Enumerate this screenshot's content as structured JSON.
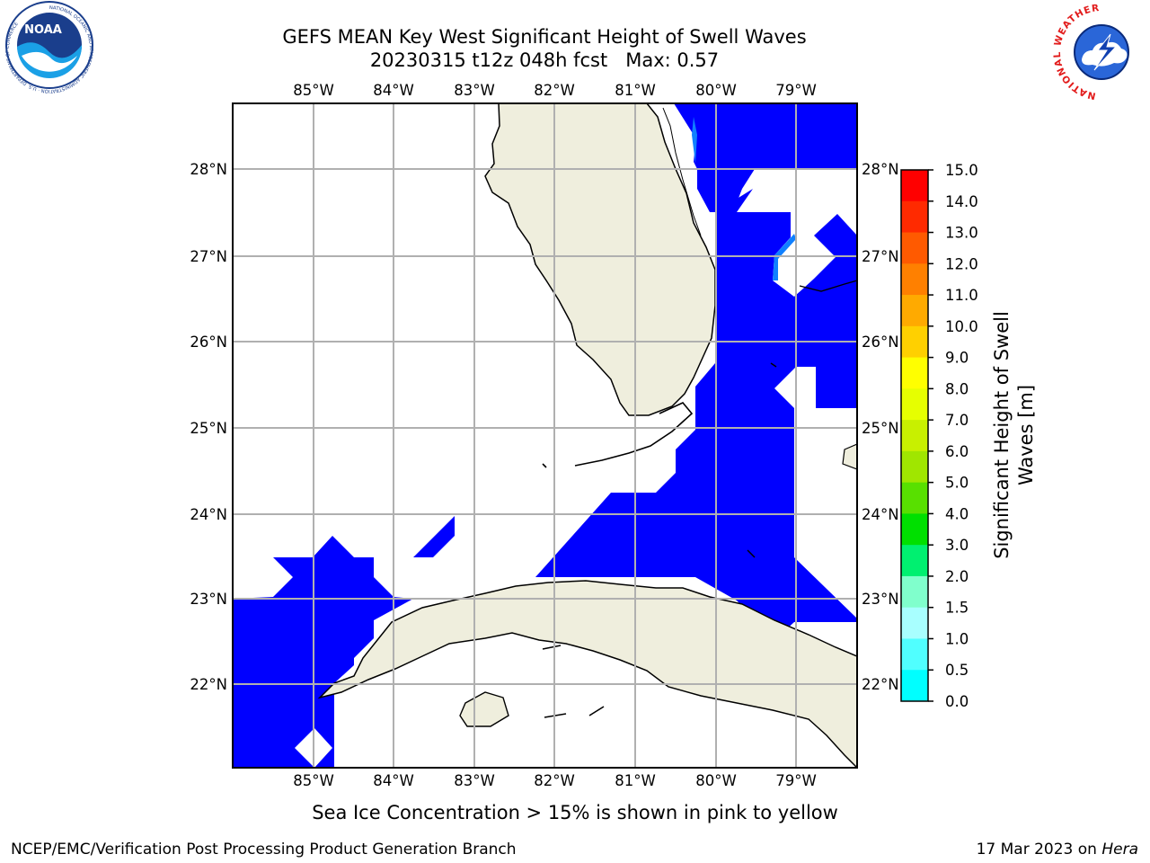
{
  "title": {
    "line1": "GEFS MEAN Key West Significant Height of Swell Waves",
    "line2": "20230315 t12z 048h fcst   Max: 0.57"
  },
  "axes": {
    "lon_labels": [
      "85°W",
      "84°W",
      "83°W",
      "82°W",
      "81°W",
      "80°W",
      "79°W"
    ],
    "lat_labels": [
      "28°N",
      "27°N",
      "26°N",
      "25°N",
      "24°N",
      "23°N",
      "22°N"
    ]
  },
  "colorbar": {
    "label_line1": "Significant Height of Swell",
    "label_line2": "Waves [m]",
    "ticks": [
      "15.0",
      "14.0",
      "13.0",
      "12.0",
      "11.0",
      "10.0",
      "9.0",
      "8.0",
      "7.0",
      "6.0",
      "5.0",
      "4.0",
      "3.0",
      "2.0",
      "1.5",
      "1.0",
      "0.5",
      "0.0"
    ],
    "colors": [
      "#ff0000",
      "#ff2a00",
      "#ff5a00",
      "#ff8000",
      "#ffaa00",
      "#ffd000",
      "#ffff00",
      "#e6ff00",
      "#c8f000",
      "#a0e600",
      "#58e000",
      "#00e000",
      "#00f070",
      "#80ffcc",
      "#a8ffff",
      "#50ffff",
      "#00ffff",
      "#0080ff",
      "#0000ff"
    ]
  },
  "map_legend": {
    "sea_ice_note": "Sea Ice Concentration > 15% is shown in pink to yellow",
    "max_value": 0.57
  },
  "footer": {
    "left": "NCEP/EMC/Verification Post Processing Product Generation Branch",
    "right_date": "17 Mar 2023 on ",
    "right_host": "Hera"
  },
  "logos": {
    "noaa_text": "NOAA",
    "noaa_ring": "NATIONAL OCEANIC AND ATMOSPHERIC ADMINISTRATION · U.S. DEPARTMENT OF COMMERCE",
    "nws_ring": "NATIONAL WEATHER SERVICE"
  },
  "colors": {
    "land": "#efeedd",
    "swell_fill": "#0000ff",
    "swell_light": "#1080ff",
    "grid": "#b0b0b0"
  }
}
